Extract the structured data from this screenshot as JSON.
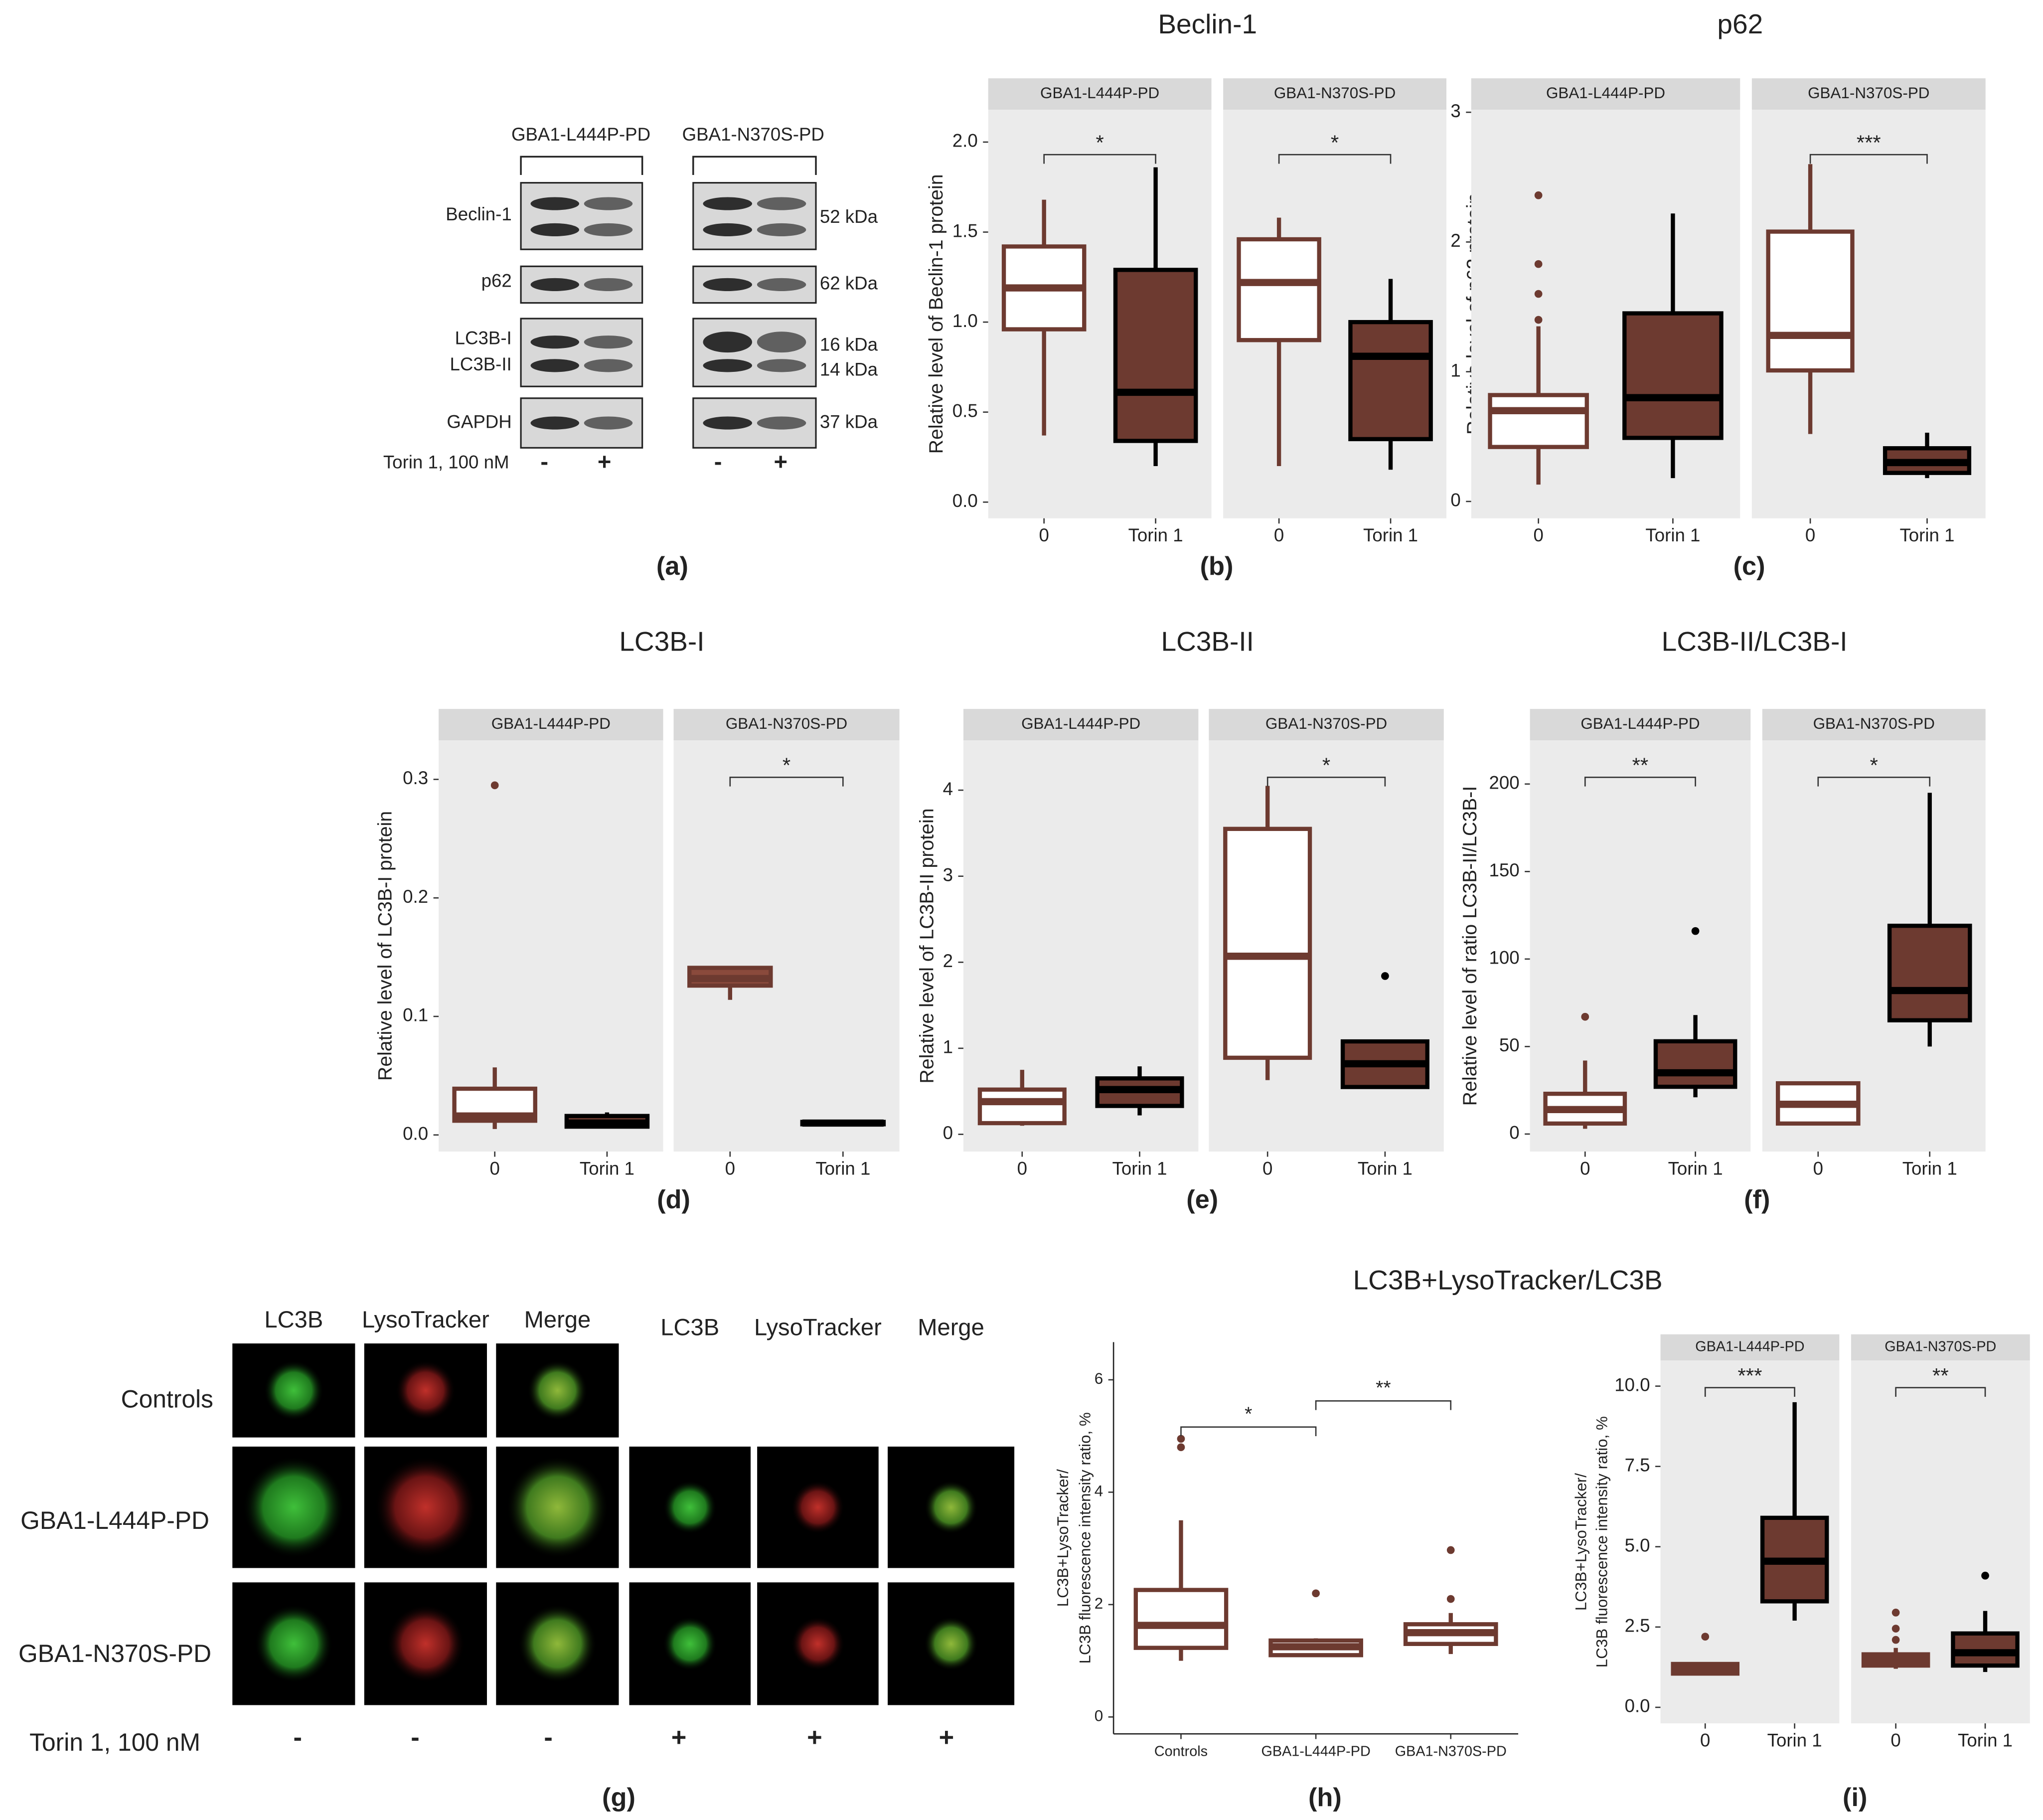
{
  "blot": {
    "groups": [
      "GBA1-L444P-PD",
      "GBA1-N370S-PD"
    ],
    "rows": [
      "Beclin-1",
      "p62",
      "LC3B-I",
      "LC3B-II",
      "GAPDH"
    ],
    "sizes": [
      "52 kDa",
      "62 kDa",
      "16 kDa",
      "14 kDa",
      "37 kDa"
    ],
    "treatment": "Torin 1, 100 nM",
    "signs": [
      "-",
      "+",
      "-",
      "+"
    ],
    "letter": "(a)"
  },
  "imaging": {
    "columns": [
      "LC3B",
      "LysoTracker",
      "Merge",
      "LC3B",
      "LysoTracker",
      "Merge"
    ],
    "rows": [
      "Controls",
      "GBA1-L444P-PD",
      "GBA1-N370S-PD"
    ],
    "treatment": "Torin 1, 100 nM",
    "signs": [
      "-",
      "-",
      "-",
      "+",
      "+",
      "+"
    ],
    "letter": "(g)"
  },
  "chart_data": [
    {
      "type": "box",
      "title": "Beclin-1",
      "ylabel": "Relative level of Beclin-1 protein",
      "panel_label": "(b)",
      "ylim": [
        -0.09,
        2.18
      ],
      "yticks": [
        {
          "value": 0,
          "label": "0.0"
        },
        0.5,
        {
          "value": 1,
          "label": "1.0"
        },
        1.5,
        {
          "value": 2,
          "label": "2.0"
        }
      ],
      "panel_background": "#ebebeb",
      "facets": [
        {
          "name": "GBA1-L444P-PD",
          "significance": "*",
          "categories": [
            "0",
            "Torin 1"
          ],
          "boxes": [
            {
              "whislo": 0.37,
              "q1": 0.96,
              "med": 1.19,
              "q3": 1.42,
              "whishi": 1.68,
              "fill": "#ffffff",
              "stroke": "#6d3a30"
            },
            {
              "whislo": 0.2,
              "q1": 0.34,
              "med": 0.61,
              "q3": 1.29,
              "whishi": 1.86,
              "fill": "#6d3a30",
              "stroke": "#000000"
            }
          ]
        },
        {
          "name": "GBA1-N370S-PD",
          "significance": "*",
          "categories": [
            "0",
            "Torin 1"
          ],
          "boxes": [
            {
              "whislo": 0.2,
              "q1": 0.9,
              "med": 1.22,
              "q3": 1.46,
              "whishi": 1.58,
              "fill": "#ffffff",
              "stroke": "#6d3a30"
            },
            {
              "whislo": 0.18,
              "q1": 0.35,
              "med": 0.81,
              "q3": 1.0,
              "whishi": 1.24,
              "fill": "#6d3a30",
              "stroke": "#000000"
            }
          ]
        }
      ]
    },
    {
      "type": "box",
      "title": "p62",
      "ylabel": "Relative level of p62 protein",
      "panel_label": "(c)",
      "ylim": [
        -0.13,
        3.02
      ],
      "yticks": [
        0,
        1,
        2,
        3
      ],
      "panel_background": "#ebebeb",
      "facets": [
        {
          "name": "GBA1-L444P-PD",
          "categories": [
            "0",
            "Torin 1"
          ],
          "boxes": [
            {
              "whislo": 0.13,
              "q1": 0.42,
              "med": 0.7,
              "q3": 0.82,
              "whishi": 1.35,
              "fliers": [
                1.4,
                1.6,
                1.83,
                2.36
              ],
              "fill": "#ffffff",
              "stroke": "#6d3a30"
            },
            {
              "whislo": 0.18,
              "q1": 0.49,
              "med": 0.8,
              "q3": 1.45,
              "whishi": 2.22,
              "fill": "#6d3a30",
              "stroke": "#000000"
            }
          ]
        },
        {
          "name": "GBA1-N370S-PD",
          "significance": "***",
          "categories": [
            "0",
            "Torin 1"
          ],
          "boxes": [
            {
              "whislo": 0.52,
              "q1": 1.01,
              "med": 1.28,
              "q3": 2.08,
              "whishi": 2.6,
              "fill": "#ffffff",
              "stroke": "#6d3a30"
            },
            {
              "whislo": 0.18,
              "q1": 0.22,
              "med": 0.3,
              "q3": 0.41,
              "whishi": 0.53,
              "fill": "#6d3a30",
              "stroke": "#000000"
            }
          ]
        }
      ]
    },
    {
      "type": "box",
      "title": "LC3B-I",
      "ylabel": "Relative level of LC3B-I protein",
      "panel_label": "(d)",
      "ylim": [
        -0.014,
        0.333
      ],
      "yticks": [
        {
          "value": 0,
          "label": "0.0"
        },
        0.1,
        0.2,
        0.3
      ],
      "panel_background": "#ebebeb",
      "facets": [
        {
          "name": "GBA1-L444P-PD",
          "categories": [
            "0",
            "Torin 1"
          ],
          "boxes": [
            {
              "whislo": 0.005,
              "q1": 0.012,
              "med": 0.016,
              "q3": 0.039,
              "whishi": 0.057,
              "fliers": [
                0.295
              ],
              "fill": "#ffffff",
              "stroke": "#6d3a30"
            },
            {
              "whislo": 0.006,
              "q1": 0.007,
              "med": 0.01,
              "q3": 0.016,
              "whishi": 0.019,
              "fill": "#6d3a30",
              "stroke": "#000000"
            }
          ]
        },
        {
          "name": "GBA1-N370S-PD",
          "significance": "*",
          "categories": [
            "0",
            "Torin 1"
          ],
          "boxes": [
            {
              "whislo": 0.114,
              "q1": 0.126,
              "med": 0.132,
              "q3": 0.141,
              "whishi": 0.141,
              "fill": "#8a4a3c",
              "stroke": "#6d3a30"
            },
            {
              "whislo": 0.009,
              "q1": 0.009,
              "med": 0.01,
              "q3": 0.011,
              "whishi": 0.011,
              "fill": "#6d3a30",
              "stroke": "#000000"
            }
          ]
        }
      ]
    },
    {
      "type": "box",
      "title": "LC3B-II",
      "ylabel": "Relative level of LC3B-II protein",
      "panel_label": "(e)",
      "ylim": [
        -0.2,
        4.58
      ],
      "yticks": [
        0,
        1,
        2,
        3,
        4
      ],
      "panel_background": "#ebebeb",
      "facets": [
        {
          "name": "GBA1-L444P-PD",
          "categories": [
            "0",
            "Torin 1"
          ],
          "boxes": [
            {
              "whislo": 0.1,
              "q1": 0.13,
              "med": 0.38,
              "q3": 0.52,
              "whishi": 0.75,
              "fill": "#ffffff",
              "stroke": "#6d3a30"
            },
            {
              "whislo": 0.22,
              "q1": 0.33,
              "med": 0.52,
              "q3": 0.65,
              "whishi": 0.79,
              "fill": "#6d3a30",
              "stroke": "#000000"
            }
          ]
        },
        {
          "name": "GBA1-N370S-PD",
          "significance": "*",
          "categories": [
            "0",
            "Torin 1"
          ],
          "boxes": [
            {
              "whislo": 0.63,
              "q1": 0.89,
              "med": 2.07,
              "q3": 3.55,
              "whishi": 4.05,
              "fill": "#ffffff",
              "stroke": "#6d3a30"
            },
            {
              "whislo": 0.55,
              "q1": 0.55,
              "med": 0.82,
              "q3": 1.08,
              "whishi": 1.08,
              "fliers": [
                1.84
              ],
              "fill": "#6d3a30",
              "stroke": "#000000"
            }
          ]
        }
      ]
    },
    {
      "type": "box",
      "title": "LC3B-II/LC3B-I",
      "ylabel": "Relative level of ratio LC3B-II/LC3B-I",
      "panel_label": "(f)",
      "ylim": [
        -10,
        225
      ],
      "yticks": [
        0,
        50,
        100,
        150,
        200
      ],
      "panel_background": "#ebebeb",
      "facets": [
        {
          "name": "GBA1-L444P-PD",
          "significance": "**",
          "categories": [
            "0",
            "Torin 1"
          ],
          "boxes": [
            {
              "whislo": 3,
              "q1": 6,
              "med": 14,
              "q3": 23,
              "whishi": 42,
              "fliers": [
                67
              ],
              "fill": "#ffffff",
              "stroke": "#6d3a30"
            },
            {
              "whislo": 21,
              "q1": 27,
              "med": 35,
              "q3": 53,
              "whishi": 68,
              "fliers": [
                116
              ],
              "fill": "#6d3a30",
              "stroke": "#000000"
            }
          ]
        },
        {
          "name": "GBA1-N370S-PD",
          "significance": "*",
          "categories": [
            "0",
            "Torin 1"
          ],
          "boxes": [
            {
              "whislo": 6,
              "q1": 6,
              "med": 17,
              "q3": 29,
              "whishi": 29,
              "fill": "#ffffff",
              "stroke": "#6d3a30"
            },
            {
              "whislo": 50,
              "q1": 65,
              "med": 82,
              "q3": 119,
              "whishi": 195,
              "fill": "#6d3a30",
              "stroke": "#000000"
            }
          ]
        }
      ]
    },
    {
      "type": "box",
      "title": "LC3B+LysoTracker/LC3B",
      "ylabel": [
        "LC3B+LysoTracker/",
        "LC3B fluorescence intensity ratio, %"
      ],
      "panel_label": "(h)",
      "ylim": [
        -0.3,
        6.67
      ],
      "yticks": [
        0,
        2,
        4,
        6
      ],
      "panel_background": "#ffffff",
      "comparisons": [
        "*",
        "**"
      ],
      "facets": [
        {
          "categories": [
            "Controls",
            "GBA1-L444P-PD",
            "GBA1-N370S-PD"
          ],
          "boxes": [
            {
              "whislo": 1.0,
              "q1": 1.23,
              "med": 1.63,
              "q3": 2.26,
              "whishi": 3.5,
              "fliers": [
                4.8,
                4.95
              ],
              "fill": "#ffffff",
              "stroke": "#6d3a30"
            },
            {
              "whislo": 1.08,
              "q1": 1.1,
              "med": 1.25,
              "q3": 1.36,
              "whishi": 1.4,
              "fliers": [
                2.2
              ],
              "fill": "#ffffff",
              "stroke": "#6d3a30"
            },
            {
              "whislo": 1.12,
              "q1": 1.3,
              "med": 1.5,
              "q3": 1.65,
              "whishi": 1.85,
              "fliers": [
                2.1,
                2.97
              ],
              "fill": "#ffffff",
              "stroke": "#6d3a30"
            }
          ]
        }
      ]
    },
    {
      "type": "box",
      "ylabel": [
        "LC3B+LysoTracker/",
        "LC3B fluorescence intensity ratio, %"
      ],
      "panel_label": "(i)",
      "ylim": [
        -0.5,
        10.8
      ],
      "yticks": [
        {
          "value": 0,
          "label": "0.0"
        },
        2.5,
        {
          "value": 5,
          "label": "5.0"
        },
        7.5,
        {
          "value": 10,
          "label": "10.0"
        }
      ],
      "panel_background": "#ebebeb",
      "facets": [
        {
          "name": "GBA1-L444P-PD",
          "significance": "***",
          "categories": [
            "0",
            "Torin 1"
          ],
          "boxes": [
            {
              "whislo": 1.0,
              "q1": 1.05,
              "med": 1.2,
              "q3": 1.35,
              "whishi": 1.4,
              "fliers": [
                2.2
              ],
              "fill": "#6d3a30",
              "stroke": "#6d3a30"
            },
            {
              "whislo": 2.7,
              "q1": 3.3,
              "med": 4.55,
              "q3": 5.9,
              "whishi": 9.5,
              "fill": "#6d3a30",
              "stroke": "#000000"
            }
          ]
        },
        {
          "name": "GBA1-N370S-PD",
          "significance": "**",
          "categories": [
            "0",
            "Torin 1"
          ],
          "boxes": [
            {
              "whislo": 1.2,
              "q1": 1.3,
              "med": 1.5,
              "q3": 1.65,
              "whishi": 1.85,
              "fliers": [
                2.1,
                2.45,
                2.95
              ],
              "fill": "#6d3a30",
              "stroke": "#6d3a30"
            },
            {
              "whislo": 1.1,
              "q1": 1.3,
              "med": 1.7,
              "q3": 2.3,
              "whishi": 3.0,
              "fliers": [
                4.1
              ],
              "fill": "#6d3a30",
              "stroke": "#000000"
            }
          ]
        }
      ]
    }
  ]
}
